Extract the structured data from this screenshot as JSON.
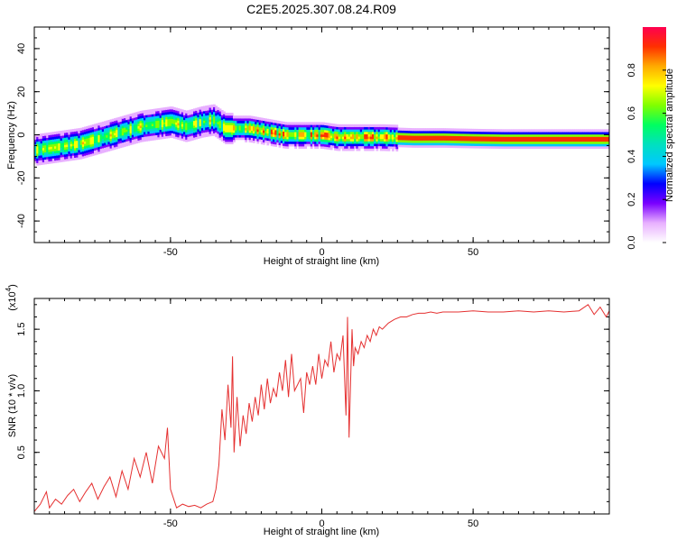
{
  "page_title": "C2E5.2025.307.08.24.R09",
  "chart_data": [
    {
      "type": "heatmap",
      "title": "C2E5.2025.307.08.24.R09",
      "xlabel": "Height of straight line (km)",
      "ylabel": "Frequency (Hz)",
      "xlim": [
        -95,
        95
      ],
      "ylim": [
        -50,
        50
      ],
      "xticks": [
        -50,
        0,
        50
      ],
      "xtick_labels": [
        "-50",
        "0",
        "50"
      ],
      "yticks": [
        -40,
        -20,
        0,
        20,
        40
      ],
      "ytick_labels": [
        "-40",
        "-20",
        "0",
        "20",
        "40"
      ],
      "grid": false,
      "ridge": {
        "x": [
          -95,
          -90,
          -85,
          -80,
          -75,
          -70,
          -65,
          -60,
          -55,
          -50,
          -45,
          -40,
          -36,
          -32,
          -28,
          -24,
          -20,
          -16,
          -12,
          -8,
          -4,
          0,
          5,
          10,
          20,
          30,
          40,
          50,
          60,
          70,
          80,
          90,
          95
        ],
        "y": [
          -7,
          -6,
          -5,
          -4,
          -2,
          0,
          2,
          4,
          5,
          6,
          4,
          6,
          7,
          3,
          3,
          3,
          2,
          1,
          0,
          0,
          0,
          0,
          -1,
          -1,
          -1,
          -1.5,
          -1.5,
          -1.8,
          -2,
          -2,
          -2,
          -2,
          -2
        ]
      },
      "colorbar": {
        "label": "Normalized spectral amplitude",
        "range": [
          0,
          1
        ],
        "ticks": [
          0.0,
          0.2,
          0.4,
          0.6,
          0.8
        ],
        "tick_labels": [
          "0.0",
          "0.2",
          "0.4",
          "0.6",
          "0.8"
        ],
        "colors": [
          "#ffffff",
          "#e8b0ff",
          "#7a00ff",
          "#0000ff",
          "#00c8ff",
          "#00e0c0",
          "#00ff60",
          "#80ff00",
          "#ffff00",
          "#ffaa00",
          "#ff3000",
          "#ff0050"
        ]
      }
    },
    {
      "type": "line",
      "xlabel": "Height of straight line (km)",
      "ylabel": "SNR (10 * v/v)",
      "y_multiplier": "(x10",
      "y_multiplier_exp": "4",
      "y_multiplier_close": ")",
      "xlim": [
        -95,
        95
      ],
      "ylim": [
        0,
        1.75
      ],
      "xticks": [
        -50,
        0,
        50
      ],
      "xtick_labels": [
        "-50",
        "0",
        "50"
      ],
      "yticks": [
        0.5,
        1.0,
        1.5
      ],
      "ytick_labels": [
        "0.5",
        "1.0",
        "1.5"
      ],
      "grid": false,
      "line_color": "#e53030",
      "series": [
        {
          "x": [
            -95,
            -93,
            -91,
            -90,
            -88,
            -86,
            -84,
            -82,
            -80,
            -78,
            -76,
            -74,
            -72,
            -70,
            -68,
            -66,
            -64,
            -62,
            -60,
            -58,
            -56,
            -54,
            -52,
            -51,
            -50,
            -48,
            -46,
            -44,
            -42,
            -40,
            -38,
            -36,
            -35,
            -34,
            -33,
            -32,
            -31,
            -30,
            -29.5,
            -29,
            -28,
            -27,
            -26,
            -25,
            -24,
            -23,
            -22,
            -21,
            -20,
            -19,
            -18,
            -17,
            -16,
            -15,
            -14,
            -13,
            -12,
            -11,
            -10,
            -9,
            -8,
            -7,
            -6,
            -5,
            -4,
            -3,
            -2,
            -1,
            0,
            1,
            2,
            3,
            4,
            5,
            6,
            7,
            8,
            8.5,
            9,
            10,
            10.5,
            11,
            12,
            13,
            14,
            15,
            16,
            17,
            18,
            19,
            20,
            22,
            24,
            26,
            28,
            30,
            32,
            34,
            36,
            38,
            40,
            42,
            45,
            50,
            55,
            60,
            65,
            70,
            75,
            80,
            85,
            88,
            90,
            92,
            94,
            95
          ],
          "y": [
            0.02,
            0.08,
            0.18,
            0.05,
            0.12,
            0.08,
            0.15,
            0.2,
            0.1,
            0.18,
            0.25,
            0.12,
            0.22,
            0.3,
            0.14,
            0.35,
            0.2,
            0.45,
            0.3,
            0.5,
            0.25,
            0.55,
            0.45,
            0.7,
            0.2,
            0.05,
            0.08,
            0.06,
            0.07,
            0.05,
            0.08,
            0.1,
            0.2,
            0.4,
            0.85,
            0.6,
            1.05,
            0.7,
            1.28,
            0.5,
            0.95,
            0.55,
            0.8,
            0.65,
            0.9,
            0.75,
            0.95,
            0.8,
            1.05,
            0.85,
            1.1,
            0.9,
            1.02,
            0.95,
            1.15,
            1.0,
            1.25,
            0.95,
            1.3,
            1.0,
            1.05,
            1.1,
            0.82,
            1.15,
            1.05,
            1.2,
            1.05,
            1.3,
            1.1,
            1.25,
            1.2,
            1.4,
            1.15,
            1.3,
            1.25,
            1.45,
            0.8,
            1.6,
            0.62,
            1.5,
            1.2,
            1.35,
            1.3,
            1.4,
            1.35,
            1.45,
            1.4,
            1.5,
            1.45,
            1.52,
            1.5,
            1.55,
            1.58,
            1.6,
            1.6,
            1.62,
            1.63,
            1.63,
            1.64,
            1.63,
            1.64,
            1.64,
            1.64,
            1.65,
            1.64,
            1.64,
            1.65,
            1.64,
            1.65,
            1.64,
            1.65,
            1.7,
            1.62,
            1.68,
            1.6,
            1.65
          ]
        }
      ]
    }
  ]
}
